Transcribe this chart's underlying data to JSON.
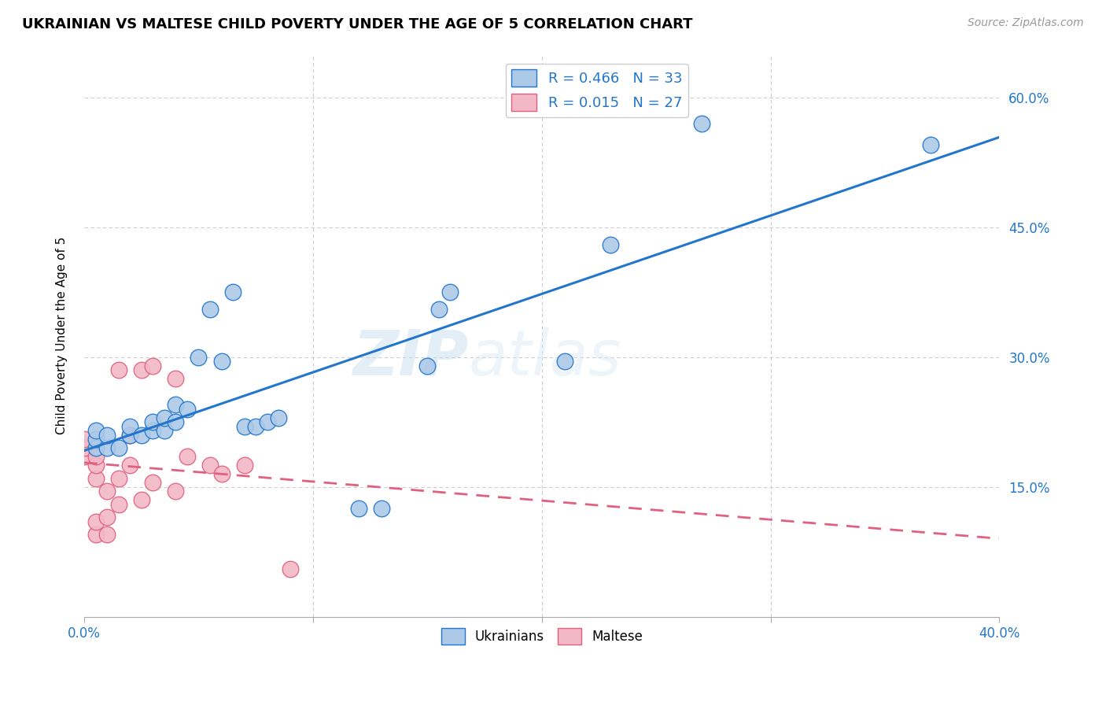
{
  "title": "UKRAINIAN VS MALTESE CHILD POVERTY UNDER THE AGE OF 5 CORRELATION CHART",
  "source": "Source: ZipAtlas.com",
  "ylabel": "Child Poverty Under the Age of 5",
  "x_min": 0.0,
  "x_max": 0.4,
  "y_min": 0.0,
  "y_max": 0.65,
  "ukrainian_color": "#adc9e8",
  "maltese_color": "#f2b8c6",
  "trendline_ukrainian_color": "#2277cc",
  "trendline_maltese_color": "#e06080",
  "legend_r_ukrainian": "R = 0.466",
  "legend_n_ukrainian": "N = 33",
  "legend_r_maltese": "R = 0.015",
  "legend_n_maltese": "N = 27",
  "watermark_zip": "ZIP",
  "watermark_atlas": "atlas",
  "ukrainians_label": "Ukrainians",
  "maltese_label": "Maltese",
  "ukrainian_x": [
    0.005,
    0.005,
    0.005,
    0.01,
    0.01,
    0.015,
    0.02,
    0.02,
    0.025,
    0.03,
    0.03,
    0.035,
    0.035,
    0.04,
    0.04,
    0.045,
    0.05,
    0.055,
    0.06,
    0.065,
    0.07,
    0.075,
    0.08,
    0.085,
    0.12,
    0.13,
    0.15,
    0.155,
    0.16,
    0.21,
    0.23,
    0.27,
    0.37
  ],
  "ukrainian_y": [
    0.195,
    0.205,
    0.215,
    0.195,
    0.21,
    0.195,
    0.21,
    0.22,
    0.21,
    0.215,
    0.225,
    0.215,
    0.23,
    0.225,
    0.245,
    0.24,
    0.3,
    0.355,
    0.295,
    0.375,
    0.22,
    0.22,
    0.225,
    0.23,
    0.125,
    0.125,
    0.29,
    0.355,
    0.375,
    0.295,
    0.43,
    0.57,
    0.545
  ],
  "maltese_x": [
    0.0,
    0.0,
    0.0,
    0.005,
    0.005,
    0.005,
    0.005,
    0.005,
    0.01,
    0.01,
    0.01,
    0.015,
    0.015,
    0.015,
    0.02,
    0.02,
    0.025,
    0.025,
    0.03,
    0.03,
    0.04,
    0.04,
    0.045,
    0.055,
    0.06,
    0.07,
    0.09
  ],
  "maltese_y": [
    0.185,
    0.195,
    0.205,
    0.095,
    0.11,
    0.16,
    0.175,
    0.185,
    0.095,
    0.115,
    0.145,
    0.13,
    0.16,
    0.285,
    0.175,
    0.21,
    0.135,
    0.285,
    0.155,
    0.29,
    0.145,
    0.275,
    0.185,
    0.175,
    0.165,
    0.175,
    0.055
  ]
}
